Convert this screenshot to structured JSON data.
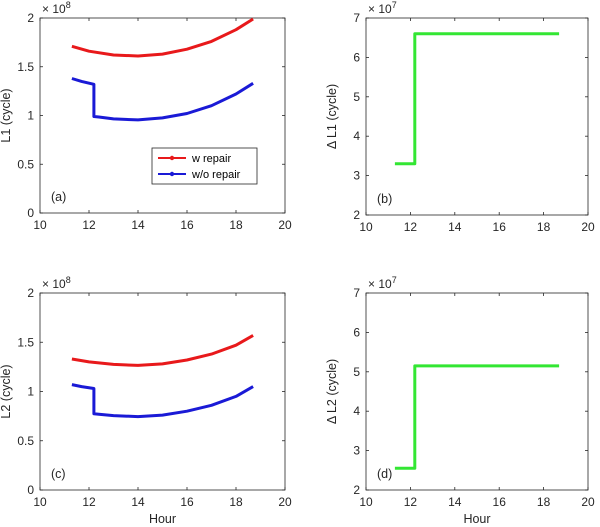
{
  "figure": {
    "background": "#ffffff",
    "axis_color": "#262626"
  },
  "chart_data": [
    {
      "type": "line",
      "panel_label": "(a)",
      "ylabel": "L1 (cycle)",
      "xlabel": "",
      "xlim": [
        10,
        20
      ],
      "ylim": [
        0,
        200000000
      ],
      "xticks": [
        10,
        12,
        14,
        16,
        18,
        20
      ],
      "yticks": [
        0,
        50000000,
        100000000,
        150000000,
        200000000
      ],
      "yticklabels": [
        "0",
        "0.5",
        "1",
        "1.5",
        "2"
      ],
      "exponent": {
        "base": "× 10",
        "power": "8"
      },
      "legend": {
        "position": "lower-right",
        "entries": [
          "w repair",
          "w/o repair"
        ]
      },
      "series": [
        {
          "name": "w repair",
          "color": "#e8191b",
          "width": 3,
          "x": [
            11.3,
            12,
            13,
            14,
            15,
            16,
            17,
            18,
            18.7
          ],
          "y": [
            171000000,
            166000000,
            162000000,
            161000000,
            163000000,
            168000000,
            176000000,
            188000000,
            199000000
          ]
        },
        {
          "name": "w/o repair",
          "color": "#1a1ad6",
          "width": 3,
          "x": [
            11.3,
            11.7,
            12.2,
            12.2,
            12.4,
            13,
            14,
            15,
            16,
            17,
            18,
            18.7
          ],
          "y": [
            138000000,
            135000000,
            132000000,
            99000000,
            98500000,
            96500000,
            95500000,
            97500000,
            102000000,
            110000000,
            122000000,
            133000000
          ]
        }
      ]
    },
    {
      "type": "line",
      "panel_label": "(b)",
      "ylabel": "Δ L1 (cycle)",
      "xlabel": "",
      "xlim": [
        10,
        20
      ],
      "ylim": [
        20000000,
        70000000
      ],
      "xticks": [
        10,
        12,
        14,
        16,
        18,
        20
      ],
      "yticks": [
        20000000,
        30000000,
        40000000,
        50000000,
        60000000,
        70000000
      ],
      "yticklabels": [
        "2",
        "3",
        "4",
        "5",
        "6",
        "7"
      ],
      "exponent": {
        "base": "× 10",
        "power": "7"
      },
      "series": [
        {
          "color": "#33e633",
          "width": 3,
          "x": [
            11.3,
            12.2,
            12.2,
            18.7
          ],
          "y": [
            33000000,
            33000000,
            66000000,
            66000000
          ]
        }
      ]
    },
    {
      "type": "line",
      "panel_label": "(c)",
      "ylabel": "L2 (cycle)",
      "xlabel": "Hour",
      "xlim": [
        10,
        20
      ],
      "ylim": [
        0,
        200000000
      ],
      "xticks": [
        10,
        12,
        14,
        16,
        18,
        20
      ],
      "yticks": [
        0,
        50000000,
        100000000,
        150000000,
        200000000
      ],
      "yticklabels": [
        "0",
        "0.5",
        "1",
        "1.5",
        "2"
      ],
      "exponent": {
        "base": "× 10",
        "power": "8"
      },
      "series": [
        {
          "name": "w repair",
          "color": "#e8191b",
          "width": 3,
          "x": [
            11.3,
            12,
            13,
            14,
            15,
            16,
            17,
            18,
            18.7
          ],
          "y": [
            133000000,
            130000000,
            127500000,
            126500000,
            128000000,
            132000000,
            138000000,
            147000000,
            157000000
          ]
        },
        {
          "name": "w/o repair",
          "color": "#1a1ad6",
          "width": 3,
          "x": [
            11.3,
            11.7,
            12.2,
            12.2,
            12.4,
            13,
            14,
            15,
            16,
            17,
            18,
            18.7
          ],
          "y": [
            107000000,
            105000000,
            103000000,
            77500000,
            77000000,
            75500000,
            74500000,
            76000000,
            80000000,
            86000000,
            95000000,
            105000000
          ]
        }
      ]
    },
    {
      "type": "line",
      "panel_label": "(d)",
      "ylabel": "Δ L2 (cycle)",
      "xlabel": "Hour",
      "xlim": [
        10,
        20
      ],
      "ylim": [
        20000000,
        70000000
      ],
      "xticks": [
        10,
        12,
        14,
        16,
        18,
        20
      ],
      "yticks": [
        20000000,
        30000000,
        40000000,
        50000000,
        60000000,
        70000000
      ],
      "yticklabels": [
        "2",
        "3",
        "4",
        "5",
        "6",
        "7"
      ],
      "exponent": {
        "base": "× 10",
        "power": "7"
      },
      "series": [
        {
          "color": "#33e633",
          "width": 3,
          "x": [
            11.3,
            12.2,
            12.2,
            18.7
          ],
          "y": [
            25500000,
            25500000,
            51500000,
            51500000
          ]
        }
      ]
    }
  ]
}
